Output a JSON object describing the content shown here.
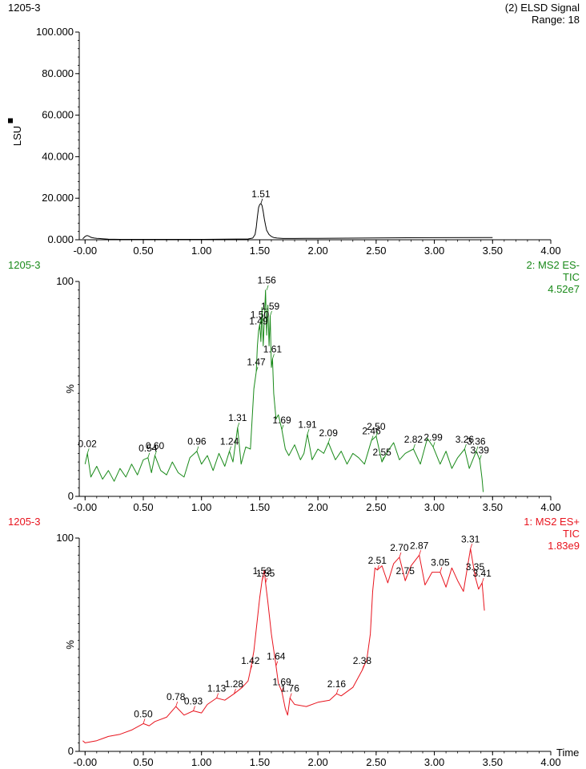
{
  "chart_data": [
    {
      "type": "line",
      "color": "#000000",
      "header_left": "1205-3",
      "header_right": [
        "(2) ELSD Signal",
        "Range: 18"
      ],
      "ylabel": "LSU",
      "yticks": [
        "100.000",
        "80.000",
        "60.000",
        "40.000",
        "20.000",
        "0.000"
      ],
      "ytick_values": [
        100,
        80,
        60,
        40,
        20,
        0
      ],
      "ylim": [
        0,
        100
      ],
      "xlim": [
        -0.05,
        4.0
      ],
      "xticks": [
        "-0.00",
        "0.50",
        "1.00",
        "1.50",
        "2.00",
        "2.50",
        "3.00",
        "3.50",
        "4.00"
      ],
      "xtick_values": [
        0,
        0.5,
        1.0,
        1.5,
        2.0,
        2.5,
        3.0,
        3.5,
        4.0
      ],
      "xlabel": "",
      "series": [
        {
          "x": [
            -0.02,
            -0.01,
            0.0,
            0.01,
            0.02,
            0.03,
            0.04,
            0.05,
            0.06,
            0.08,
            0.1,
            0.12,
            0.15,
            0.2,
            0.3,
            0.5,
            0.8,
            1.0,
            1.2,
            1.4,
            1.44,
            1.46,
            1.47,
            1.48,
            1.49,
            1.5,
            1.51,
            1.52,
            1.53,
            1.54,
            1.55,
            1.56,
            1.58,
            1.6,
            1.62,
            1.65,
            1.7,
            1.8,
            2.0,
            2.5,
            3.0,
            3.5
          ],
          "y": [
            0.5,
            1.0,
            1.6,
            1.9,
            2.0,
            1.8,
            1.5,
            1.2,
            1.0,
            0.8,
            0.7,
            0.6,
            0.5,
            0.3,
            0.2,
            0.2,
            0.2,
            0.2,
            0.3,
            0.4,
            0.8,
            2.5,
            6.0,
            11.0,
            15.5,
            17.0,
            17.4,
            16.5,
            13.5,
            10.0,
            7.0,
            4.5,
            2.5,
            1.6,
            1.1,
            0.8,
            0.6,
            0.6,
            0.7,
            0.9,
            1.0,
            1.1
          ]
        }
      ],
      "annotations": [
        {
          "x": 1.51,
          "y": 17.4,
          "label": "1.51"
        }
      ]
    },
    {
      "type": "line",
      "color": "#1a8a1a",
      "header_left": "1205-3",
      "header_right": [
        "2: MS2 ES-",
        "TIC",
        "4.52e7"
      ],
      "ylabel": "%",
      "yticks": [
        "100",
        "0"
      ],
      "ytick_values": [
        100,
        0
      ],
      "ylim": [
        0,
        100
      ],
      "xlim": [
        -0.05,
        4.0
      ],
      "xticks": [
        "-0.00",
        "0.50",
        "1.00",
        "1.50",
        "2.00",
        "2.50",
        "3.00",
        "3.50",
        "4.00"
      ],
      "xtick_values": [
        0,
        0.5,
        1.0,
        1.5,
        2.0,
        2.5,
        3.0,
        3.5,
        4.0
      ],
      "xlabel": "",
      "series": [
        {
          "x": [
            0.0,
            0.02,
            0.05,
            0.1,
            0.15,
            0.2,
            0.25,
            0.3,
            0.35,
            0.4,
            0.45,
            0.5,
            0.54,
            0.57,
            0.6,
            0.65,
            0.7,
            0.75,
            0.8,
            0.85,
            0.9,
            0.96,
            1.0,
            1.05,
            1.1,
            1.15,
            1.2,
            1.24,
            1.27,
            1.31,
            1.34,
            1.38,
            1.42,
            1.45,
            1.47,
            1.48,
            1.49,
            1.5,
            1.51,
            1.52,
            1.53,
            1.54,
            1.55,
            1.56,
            1.57,
            1.58,
            1.59,
            1.6,
            1.61,
            1.62,
            1.64,
            1.66,
            1.69,
            1.72,
            1.75,
            1.8,
            1.85,
            1.88,
            1.91,
            1.95,
            2.0,
            2.05,
            2.09,
            2.15,
            2.2,
            2.25,
            2.3,
            2.35,
            2.4,
            2.46,
            2.5,
            2.55,
            2.6,
            2.65,
            2.7,
            2.75,
            2.82,
            2.88,
            2.94,
            2.99,
            3.05,
            3.1,
            3.15,
            3.2,
            3.26,
            3.3,
            3.36,
            3.39,
            3.41,
            3.42
          ],
          "y": [
            15,
            20,
            9,
            14,
            8,
            12,
            7,
            13,
            9,
            15,
            10,
            17,
            18,
            11,
            19,
            12,
            10,
            16,
            11,
            9,
            18,
            21,
            15,
            19,
            12,
            20,
            14,
            21,
            16,
            32,
            15,
            23,
            22,
            50,
            58,
            70,
            77,
            80,
            72,
            88,
            70,
            82,
            96,
            75,
            89,
            70,
            84,
            60,
            64,
            48,
            36,
            38,
            31,
            22,
            19,
            24,
            17,
            20,
            29,
            17,
            22,
            20,
            25,
            17,
            21,
            15,
            20,
            18,
            15,
            26,
            28,
            16,
            21,
            25,
            17,
            20,
            22,
            15,
            27,
            23,
            15,
            21,
            13,
            18,
            22,
            13,
            21,
            17,
            8,
            2
          ]
        }
      ],
      "annotations": [
        {
          "x": 0.02,
          "y": 20,
          "label": "0.02"
        },
        {
          "x": 0.54,
          "y": 18,
          "label": "0.54"
        },
        {
          "x": 0.6,
          "y": 19,
          "label": "0.60"
        },
        {
          "x": 0.96,
          "y": 21,
          "label": "0.96"
        },
        {
          "x": 1.24,
          "y": 21,
          "label": "1.24"
        },
        {
          "x": 1.31,
          "y": 32,
          "label": "1.31"
        },
        {
          "x": 1.47,
          "y": 58,
          "label": "1.47"
        },
        {
          "x": 1.49,
          "y": 77,
          "label": "1.49"
        },
        {
          "x": 1.5,
          "y": 80,
          "label": "1.50"
        },
        {
          "x": 1.56,
          "y": 96,
          "label": "1.56"
        },
        {
          "x": 1.59,
          "y": 84,
          "label": "1.59"
        },
        {
          "x": 1.61,
          "y": 64,
          "label": "1.61"
        },
        {
          "x": 1.69,
          "y": 31,
          "label": "1.69"
        },
        {
          "x": 1.91,
          "y": 29,
          "label": "1.91"
        },
        {
          "x": 2.09,
          "y": 25,
          "label": "2.09"
        },
        {
          "x": 2.46,
          "y": 26,
          "label": "2.46"
        },
        {
          "x": 2.5,
          "y": 28,
          "label": "2.50"
        },
        {
          "x": 2.55,
          "y": 16,
          "label": "2.55"
        },
        {
          "x": 2.82,
          "y": 22,
          "label": "2.82"
        },
        {
          "x": 2.99,
          "y": 23,
          "label": "2.99"
        },
        {
          "x": 3.26,
          "y": 22,
          "label": "3.26"
        },
        {
          "x": 3.36,
          "y": 21,
          "label": "3.36"
        },
        {
          "x": 3.39,
          "y": 17,
          "label": "3.39"
        }
      ]
    },
    {
      "type": "line",
      "color": "#e8141e",
      "header_left": "1205-3",
      "header_right": [
        "1: MS2 ES+",
        "TIC",
        "1.83e9"
      ],
      "ylabel": "%",
      "yticks": [
        "100",
        "0"
      ],
      "ytick_values": [
        100,
        0
      ],
      "ylim": [
        0,
        100
      ],
      "xlim": [
        -0.05,
        4.0
      ],
      "xticks": [
        "-0.00",
        "0.50",
        "1.00",
        "1.50",
        "2.00",
        "2.50",
        "3.00",
        "3.50",
        "4.00"
      ],
      "xtick_values": [
        0,
        0.5,
        1.0,
        1.5,
        2.0,
        2.5,
        3.0,
        3.5,
        4.0
      ],
      "xlabel": "Time",
      "series": [
        {
          "x": [
            -0.02,
            0.0,
            0.1,
            0.2,
            0.3,
            0.4,
            0.5,
            0.55,
            0.6,
            0.7,
            0.78,
            0.85,
            0.93,
            1.0,
            1.05,
            1.13,
            1.2,
            1.28,
            1.35,
            1.4,
            1.42,
            1.45,
            1.48,
            1.5,
            1.52,
            1.54,
            1.55,
            1.57,
            1.6,
            1.64,
            1.66,
            1.69,
            1.72,
            1.74,
            1.76,
            1.8,
            1.9,
            2.0,
            2.1,
            2.16,
            2.2,
            2.3,
            2.38,
            2.42,
            2.45,
            2.47,
            2.49,
            2.51,
            2.55,
            2.6,
            2.65,
            2.7,
            2.75,
            2.8,
            2.87,
            2.92,
            2.98,
            3.05,
            3.1,
            3.15,
            3.2,
            3.25,
            3.31,
            3.35,
            3.38,
            3.41,
            3.43
          ],
          "y": [
            5,
            4,
            5,
            7,
            8,
            10,
            13,
            12,
            14,
            16,
            21,
            17,
            19,
            18,
            22,
            25,
            24,
            27,
            30,
            33,
            38,
            47,
            62,
            72,
            80,
            85,
            79,
            70,
            55,
            40,
            32,
            28,
            20,
            17,
            25,
            22,
            21,
            23,
            24,
            27,
            26,
            30,
            38,
            43,
            55,
            75,
            86,
            85,
            87,
            79,
            88,
            91,
            80,
            87,
            92,
            78,
            84,
            84,
            77,
            86,
            80,
            75,
            95,
            82,
            76,
            79,
            66
          ]
        }
      ],
      "annotations": [
        {
          "x": 0.5,
          "y": 13,
          "label": "0.50"
        },
        {
          "x": 0.78,
          "y": 21,
          "label": "0.78"
        },
        {
          "x": 0.93,
          "y": 19,
          "label": "0.93"
        },
        {
          "x": 1.13,
          "y": 25,
          "label": "1.13"
        },
        {
          "x": 1.28,
          "y": 27,
          "label": "1.28"
        },
        {
          "x": 1.42,
          "y": 38,
          "label": "1.42"
        },
        {
          "x": 1.52,
          "y": 80,
          "label": "1.52"
        },
        {
          "x": 1.55,
          "y": 79,
          "label": "1.55"
        },
        {
          "x": 1.64,
          "y": 40,
          "label": "1.64"
        },
        {
          "x": 1.69,
          "y": 28,
          "label": "1.69"
        },
        {
          "x": 1.76,
          "y": 25,
          "label": "1.76"
        },
        {
          "x": 2.16,
          "y": 27,
          "label": "2.16"
        },
        {
          "x": 2.38,
          "y": 38,
          "label": "2.38"
        },
        {
          "x": 2.51,
          "y": 85,
          "label": "2.51"
        },
        {
          "x": 2.7,
          "y": 91,
          "label": "2.70"
        },
        {
          "x": 2.75,
          "y": 80,
          "label": "2.75"
        },
        {
          "x": 2.87,
          "y": 92,
          "label": "2.87"
        },
        {
          "x": 3.05,
          "y": 84,
          "label": "3.05"
        },
        {
          "x": 3.31,
          "y": 95,
          "label": "3.31"
        },
        {
          "x": 3.35,
          "y": 82,
          "label": "3.35"
        },
        {
          "x": 3.41,
          "y": 79,
          "label": "3.41"
        }
      ]
    }
  ]
}
